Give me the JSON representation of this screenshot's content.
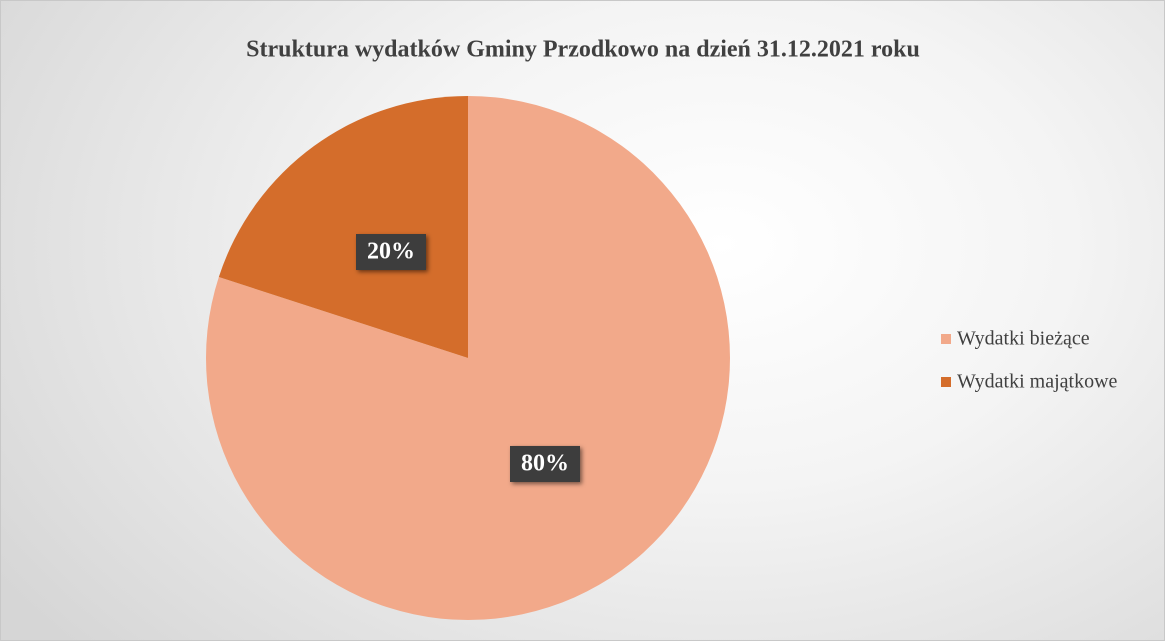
{
  "chart_data": {
    "type": "pie",
    "title": "Struktura wydatków Gminy Przodkowo na dzień 31.12.2021 roku",
    "categories": [
      "Wydatki bieżące",
      "Wydatki majątkowe"
    ],
    "values": [
      80,
      20
    ],
    "value_labels": [
      "80%",
      "20%"
    ],
    "colors": [
      "#f2a98a",
      "#d46d2b"
    ],
    "legend": "right"
  }
}
